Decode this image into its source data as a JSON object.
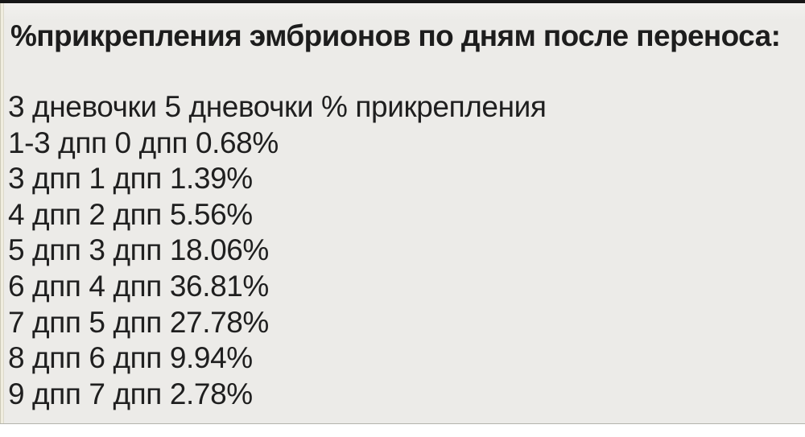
{
  "title": "%прикрепления эмбрионов по дням после переноса:",
  "table": {
    "columns": [
      "3 дневочки",
      "5 дневочки",
      "% прикрепления"
    ],
    "rows": [
      {
        "day3": "1-3 дпп",
        "day5": "0 дпп",
        "pct": "0.68%"
      },
      {
        "day3": "3 дпп",
        "day5": "1 дпп",
        "pct": "1.39%"
      },
      {
        "day3": "4 дпп",
        "day5": "2 дпп",
        "pct": "5.56%"
      },
      {
        "day3": "5 дпп",
        "day5": "3 дпп",
        "pct": "18.06%"
      },
      {
        "day3": "6 дпп",
        "day5": "4 дпп",
        "pct": "36.81%"
      },
      {
        "day3": "7 дпп",
        "day5": "5 дпп",
        "pct": "27.78%"
      },
      {
        "day3": "8 дпп",
        "day5": "6 дпп",
        "pct": "9.94%"
      },
      {
        "day3": "9 дпп",
        "day5": "7 дпп",
        "pct": "2.78%"
      }
    ]
  },
  "colors": {
    "background": "#ecebe8",
    "top_bar": "#161616",
    "left_strip": "#f0eddf",
    "text": "#1f1f1f"
  }
}
